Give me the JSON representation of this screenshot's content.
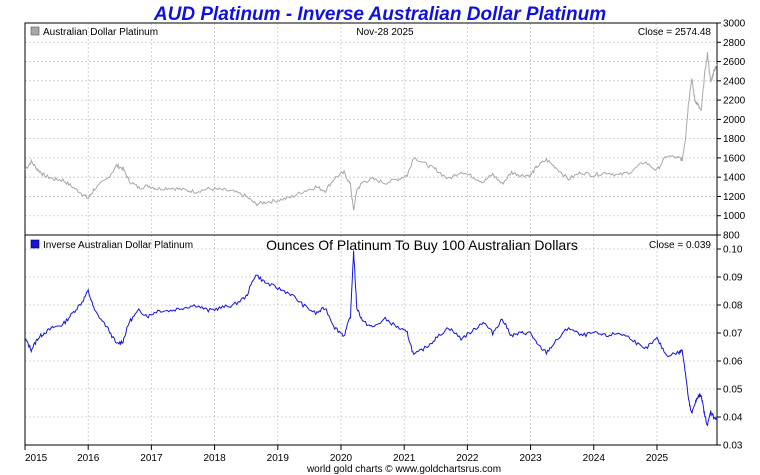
{
  "colors": {
    "title": "#1010e0",
    "top_series": "#a8a8a8",
    "bottom_series": "#1515dd",
    "grid": "#c8c8c8"
  },
  "chart_data": [
    {
      "type": "line",
      "title": "AUD Platinum - Inverse Australian Dollar Platinum",
      "legend": "Australian Dollar Platinum",
      "date_label": "Nov-28  2025",
      "close_label": "Close = 2574.48",
      "ylim": [
        800,
        3000
      ],
      "yticks": [
        800,
        1000,
        1200,
        1400,
        1600,
        1800,
        2000,
        2200,
        2400,
        2600,
        2800,
        3000
      ],
      "xlim": [
        2015.0,
        2025.95
      ],
      "x": [
        2015.0,
        2015.1,
        2015.2,
        2015.3,
        2015.45,
        2015.6,
        2015.75,
        2015.9,
        2016.0,
        2016.1,
        2016.3,
        2016.45,
        2016.55,
        2016.65,
        2016.8,
        2016.95,
        2017.1,
        2017.3,
        2017.5,
        2017.7,
        2017.9,
        2018.1,
        2018.3,
        2018.5,
        2018.65,
        2018.8,
        2019.0,
        2019.2,
        2019.4,
        2019.6,
        2019.75,
        2019.9,
        2020.05,
        2020.15,
        2020.2,
        2020.25,
        2020.35,
        2020.5,
        2020.7,
        2020.9,
        2021.05,
        2021.15,
        2021.35,
        2021.5,
        2021.7,
        2021.9,
        2022.1,
        2022.25,
        2022.4,
        2022.55,
        2022.7,
        2022.85,
        2023.0,
        2023.1,
        2023.25,
        2023.4,
        2023.6,
        2023.8,
        2024.0,
        2024.2,
        2024.4,
        2024.6,
        2024.8,
        2025.0,
        2025.15,
        2025.35,
        2025.4,
        2025.45,
        2025.5,
        2025.55,
        2025.6,
        2025.65,
        2025.7,
        2025.75,
        2025.8,
        2025.85,
        2025.9,
        2025.95
      ],
      "values": [
        1480,
        1560,
        1480,
        1420,
        1380,
        1370,
        1300,
        1230,
        1180,
        1280,
        1380,
        1520,
        1490,
        1360,
        1290,
        1310,
        1280,
        1290,
        1270,
        1250,
        1280,
        1270,
        1250,
        1200,
        1120,
        1140,
        1160,
        1190,
        1250,
        1300,
        1260,
        1390,
        1450,
        1320,
        1050,
        1270,
        1350,
        1380,
        1340,
        1380,
        1420,
        1610,
        1530,
        1480,
        1380,
        1460,
        1400,
        1350,
        1430,
        1330,
        1450,
        1420,
        1420,
        1510,
        1580,
        1500,
        1380,
        1450,
        1420,
        1450,
        1420,
        1460,
        1560,
        1470,
        1620,
        1600,
        1580,
        1800,
        2180,
        2420,
        2200,
        2150,
        2080,
        2450,
        2680,
        2380,
        2500,
        2574
      ]
    },
    {
      "type": "line",
      "legend": "Inverse Australian Dollar Platinum",
      "subtitle": "Ounces Of Platinum To Buy 100 Australian Dollars",
      "close_label": "Close = 0.039",
      "ylim": [
        0.03,
        0.105
      ],
      "yticks": [
        0.03,
        0.04,
        0.05,
        0.06,
        0.07,
        0.08,
        0.09,
        0.1
      ],
      "ytick_labels": [
        "0.03",
        "0.04",
        "0.05",
        "0.06",
        "0.07",
        "0.08",
        "0.09",
        "0.10"
      ],
      "xlim": [
        2015.0,
        2025.95
      ],
      "x": [
        2015.0,
        2015.1,
        2015.2,
        2015.3,
        2015.45,
        2015.6,
        2015.75,
        2015.9,
        2016.0,
        2016.1,
        2016.3,
        2016.45,
        2016.55,
        2016.65,
        2016.8,
        2016.95,
        2017.1,
        2017.3,
        2017.5,
        2017.7,
        2017.9,
        2018.1,
        2018.3,
        2018.5,
        2018.65,
        2018.8,
        2019.0,
        2019.2,
        2019.4,
        2019.6,
        2019.75,
        2019.9,
        2020.05,
        2020.15,
        2020.2,
        2020.25,
        2020.35,
        2020.5,
        2020.7,
        2020.9,
        2021.05,
        2021.15,
        2021.35,
        2021.5,
        2021.7,
        2021.9,
        2022.1,
        2022.25,
        2022.4,
        2022.55,
        2022.7,
        2022.85,
        2023.0,
        2023.1,
        2023.25,
        2023.4,
        2023.6,
        2023.8,
        2024.0,
        2024.2,
        2024.4,
        2024.6,
        2024.8,
        2025.0,
        2025.15,
        2025.35,
        2025.4,
        2025.45,
        2025.5,
        2025.55,
        2025.6,
        2025.65,
        2025.7,
        2025.75,
        2025.8,
        2025.85,
        2025.9,
        2025.95
      ],
      "values": [
        0.068,
        0.064,
        0.068,
        0.07,
        0.072,
        0.073,
        0.077,
        0.081,
        0.085,
        0.078,
        0.072,
        0.066,
        0.067,
        0.074,
        0.078,
        0.076,
        0.078,
        0.078,
        0.079,
        0.08,
        0.078,
        0.079,
        0.08,
        0.083,
        0.091,
        0.088,
        0.086,
        0.084,
        0.08,
        0.077,
        0.079,
        0.072,
        0.069,
        0.076,
        0.099,
        0.079,
        0.074,
        0.072,
        0.075,
        0.072,
        0.07,
        0.062,
        0.065,
        0.068,
        0.072,
        0.068,
        0.071,
        0.074,
        0.07,
        0.075,
        0.069,
        0.07,
        0.07,
        0.066,
        0.063,
        0.067,
        0.072,
        0.069,
        0.07,
        0.069,
        0.07,
        0.068,
        0.064,
        0.068,
        0.062,
        0.063,
        0.064,
        0.056,
        0.046,
        0.041,
        0.045,
        0.047,
        0.048,
        0.041,
        0.037,
        0.042,
        0.04,
        0.039
      ]
    }
  ],
  "x_axis": {
    "ticks": [
      "2015",
      "2016",
      "2017",
      "2018",
      "2019",
      "2020",
      "2021",
      "2022",
      "2023",
      "2024",
      "2025"
    ],
    "tick_values": [
      2015,
      2016,
      2017,
      2018,
      2019,
      2020,
      2021,
      2022,
      2023,
      2024,
      2025
    ]
  },
  "footer": "world gold charts © www.goldchartsrus.com"
}
